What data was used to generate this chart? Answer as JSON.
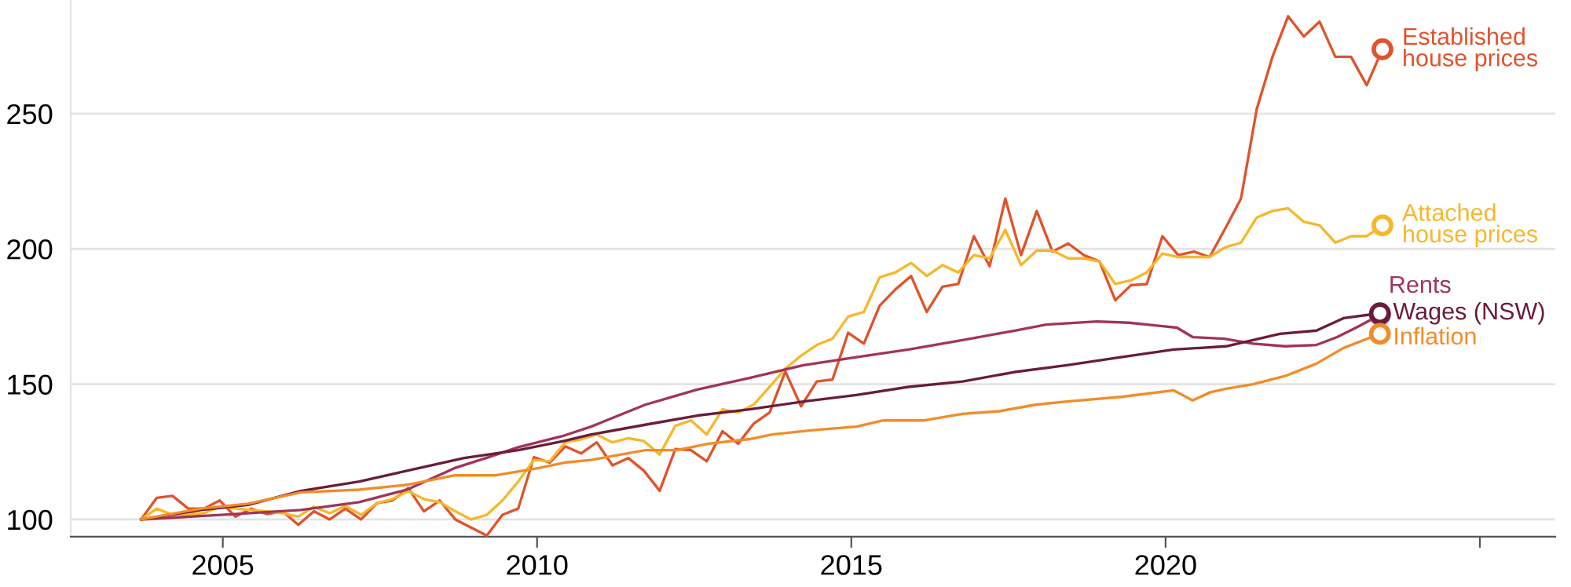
{
  "chart_data": {
    "type": "line",
    "x": [
      2003.7,
      2003.95,
      2004.2,
      2004.45,
      2004.7,
      2004.95,
      2005.2,
      2005.45,
      2005.7,
      2005.95,
      2006.2,
      2006.45,
      2006.7,
      2006.95,
      2007.2,
      2007.45,
      2007.7,
      2007.95,
      2008.2,
      2008.45,
      2008.7,
      2008.95,
      2009.2,
      2009.45,
      2009.7,
      2009.95,
      2010.2,
      2010.45,
      2010.7,
      2010.95,
      2011.2,
      2011.45,
      2011.7,
      2011.95,
      2012.2,
      2012.45,
      2012.7,
      2012.95,
      2013.2,
      2013.45,
      2013.7,
      2013.95,
      2014.2,
      2014.45,
      2014.7,
      2014.95,
      2015.2,
      2015.45,
      2015.7,
      2015.95,
      2016.2,
      2016.45,
      2016.7,
      2016.95,
      2017.2,
      2017.45,
      2017.7,
      2017.95,
      2018.2,
      2018.45,
      2018.7,
      2018.95,
      2019.2,
      2019.45,
      2019.7,
      2019.95,
      2020.2,
      2020.45,
      2020.7,
      2020.95,
      2021.2,
      2021.45,
      2021.7,
      2021.95,
      2022.2,
      2022.45,
      2022.7,
      2022.95,
      2023.2,
      2023.45
    ],
    "series": [
      {
        "name": "Established\nhouse prices",
        "color": "#e0532b",
        "values": [
          100,
          108,
          108.7,
          104,
          104,
          107,
          101,
          104,
          102,
          103,
          98,
          103,
          100,
          104,
          100,
          106,
          107,
          111.6,
          103,
          107,
          100,
          97,
          94,
          101.7,
          104,
          123,
          121,
          127,
          124.4,
          128.5,
          120,
          122.7,
          118,
          110.6,
          126,
          125.6,
          121.5,
          132.6,
          128,
          135.5,
          139.5,
          154.7,
          141.8,
          151,
          151.7,
          169,
          165,
          179,
          185,
          190,
          176.7,
          186,
          187,
          204.7,
          193.6,
          218.6,
          197.7,
          214,
          199,
          202,
          197.7,
          195.3,
          181,
          186.6,
          187,
          204.7,
          197.7,
          199,
          197,
          207.6,
          218.6,
          251.7,
          271,
          286,
          278.5,
          284,
          271,
          271,
          260.5,
          273.8
        ]
      },
      {
        "name": "Attached\nhouse prices",
        "color": "#f6b72a",
        "values": [
          100,
          104,
          101.7,
          102,
          102.3,
          104.7,
          104,
          103.5,
          103,
          102.3,
          101,
          104.7,
          102.3,
          105,
          101.7,
          106,
          107.5,
          110.5,
          107.5,
          106.4,
          103,
          100,
          101.7,
          107,
          114,
          122,
          121.5,
          128.5,
          129.6,
          131.4,
          128.5,
          130,
          129,
          124,
          134.6,
          136.6,
          131.4,
          140.7,
          139.5,
          142.5,
          149,
          155.8,
          160.5,
          164.5,
          166.8,
          175,
          176.7,
          189.5,
          191.3,
          194.8,
          190,
          194,
          191.3,
          197.7,
          196.5,
          207,
          194,
          199.4,
          199.4,
          196.5,
          196.5,
          195.3,
          187,
          188.4,
          191.3,
          198.3,
          197,
          197,
          197,
          200.6,
          202.3,
          211.6,
          214,
          215,
          210,
          208.7,
          202.3,
          204.7,
          204.7,
          208.7
        ]
      },
      {
        "name": "Rents",
        "color": "#a23457",
        "x": [
          2003.7,
          2004.97,
          2006.24,
          2007.17,
          2007.93,
          2008.69,
          2009.19,
          2009.7,
          2010.43,
          2010.86,
          2011.72,
          2012.55,
          2013.38,
          2014.24,
          2015.08,
          2015.91,
          2016.77,
          2017.6,
          2018.1,
          2018.91,
          2019.42,
          2019.92,
          2020.18,
          2020.43,
          2020.93,
          2021.39,
          2021.9,
          2022.4,
          2022.73,
          2023.08,
          2023.41
        ],
        "values": [
          100,
          101.7,
          103.5,
          106.4,
          111,
          119,
          122.7,
          126.7,
          131,
          134.3,
          142.4,
          148,
          152.3,
          157,
          160,
          162.8,
          166.3,
          169.8,
          172,
          173.2,
          172.7,
          171.5,
          170.9,
          167.4,
          166.8,
          165,
          164,
          164.5,
          167.4,
          171.5,
          175.6
        ]
      },
      {
        "name": "Wages (NSW)",
        "color": "#6a1c3b",
        "x": [
          2003.7,
          2004.65,
          2005.4,
          2006.24,
          2007.17,
          2007.93,
          2008.84,
          2009.7,
          2010.43,
          2010.86,
          2011.72,
          2012.55,
          2013.38,
          2014.24,
          2015.08,
          2015.91,
          2016.77,
          2017.6,
          2018.43,
          2019.29,
          2020.13,
          2020.96,
          2021.82,
          2022.4,
          2022.83,
          2023.41
        ],
        "values": [
          100,
          103.5,
          105.4,
          110.5,
          114,
          118,
          122.7,
          125.6,
          129,
          131.4,
          135,
          138.4,
          140.7,
          143.6,
          146,
          149,
          151,
          154.5,
          157,
          160,
          162.8,
          164,
          168.6,
          169.8,
          174.4,
          176.2
        ]
      },
      {
        "name": "Inflation",
        "color": "#f28c28",
        "x": [
          2003.7,
          2004.65,
          2005.4,
          2006.24,
          2007.17,
          2007.93,
          2008.69,
          2009.34,
          2010.03,
          2010.43,
          2010.86,
          2011.72,
          2012.22,
          2012.73,
          2013.38,
          2013.74,
          2014.39,
          2015.08,
          2015.51,
          2016.16,
          2016.77,
          2017.35,
          2017.93,
          2018.43,
          2019.29,
          2020.13,
          2020.43,
          2020.71,
          2020.96,
          2021.39,
          2021.9,
          2022.4,
          2022.83,
          2023.41
        ],
        "values": [
          100,
          104,
          105.8,
          110,
          111,
          112.8,
          116.3,
          116.3,
          119,
          121,
          122,
          125.6,
          125.6,
          128,
          129.7,
          131.4,
          133,
          134.3,
          136.6,
          136.6,
          139,
          140,
          142.4,
          143.6,
          145.3,
          147.7,
          144,
          147,
          148.3,
          150,
          153,
          157.6,
          163.4,
          168.6
        ]
      }
    ],
    "xlim": [
      2002.58,
      2026.2
    ],
    "xticks": [
      2005,
      2010,
      2015,
      2020,
      {
        "value": 2025,
        "label": null
      }
    ],
    "ylim": [
      93.6,
      292
    ],
    "yticks": [
      100,
      150,
      200,
      250
    ],
    "grid": "y",
    "legend": false,
    "line_style": "solid"
  }
}
